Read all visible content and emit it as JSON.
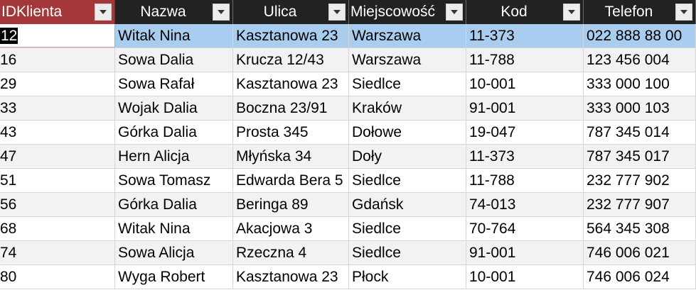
{
  "columns": [
    {
      "label": "IDKlienta"
    },
    {
      "label": "Nazwa"
    },
    {
      "label": "Ulica"
    },
    {
      "label": "Miejscowość"
    },
    {
      "label": "Kod"
    },
    {
      "label": "Telefon"
    }
  ],
  "rows": [
    {
      "id": "12",
      "nazwa": "Witak Nina",
      "ulica": "Kasztanowa 23",
      "miejscowosc": "Warszawa",
      "kod": "11-373",
      "telefon": "022 888 88 00"
    },
    {
      "id": "16",
      "nazwa": "Sowa Dalia",
      "ulica": "Krucza 12/43",
      "miejscowosc": "Warszawa",
      "kod": "11-788",
      "telefon": "123 456 004"
    },
    {
      "id": "29",
      "nazwa": "Sowa Rafał",
      "ulica": "Kasztanowa 23",
      "miejscowosc": "Siedlce",
      "kod": "10-001",
      "telefon": "333 000 100"
    },
    {
      "id": "33",
      "nazwa": "Wojak Dalia",
      "ulica": "Boczna 23/91",
      "miejscowosc": "Kraków",
      "kod": "91-001",
      "telefon": "333 000 103"
    },
    {
      "id": "43",
      "nazwa": "Górka Dalia",
      "ulica": "Prosta 345",
      "miejscowosc": "Dołowe",
      "kod": "19-047",
      "telefon": "787 345 014"
    },
    {
      "id": "47",
      "nazwa": "Hern Alicja",
      "ulica": "Młyńska 34",
      "miejscowosc": "Doły",
      "kod": "11-373",
      "telefon": "787 345 017"
    },
    {
      "id": "51",
      "nazwa": "Sowa Tomasz",
      "ulica": "Edwarda Bera 5",
      "miejscowosc": "Siedlce",
      "kod": "11-788",
      "telefon": "232 777 902"
    },
    {
      "id": "56",
      "nazwa": "Górka Dalia",
      "ulica": "Beringa 89",
      "miejscowosc": "Gdańsk",
      "kod": "74-013",
      "telefon": "232 777 907"
    },
    {
      "id": "68",
      "nazwa": "Witak Nina",
      "ulica": "Akacjowa 3",
      "miejscowosc": "Siedlce",
      "kod": "70-764",
      "telefon": "564 345 308"
    },
    {
      "id": "74",
      "nazwa": "Sowa Alicja",
      "ulica": "Rzeczna 4",
      "miejscowosc": "Siedlce",
      "kod": "91-001",
      "telefon": "746 006 021"
    },
    {
      "id": "80",
      "nazwa": "Wyga Robert",
      "ulica": "Kasztanowa 23",
      "miejscowosc": "Płock",
      "kod": "10-001",
      "telefon": "746 006 024"
    }
  ],
  "selected_row": 0,
  "colors": {
    "header_bg": "#222222",
    "active_header_bg": "#a4373a",
    "selected_row_bg": "#a9cdee",
    "alt_row_bg": "#f2f2f2"
  },
  "icons": {
    "column_menu": "chevron-down-icon"
  }
}
